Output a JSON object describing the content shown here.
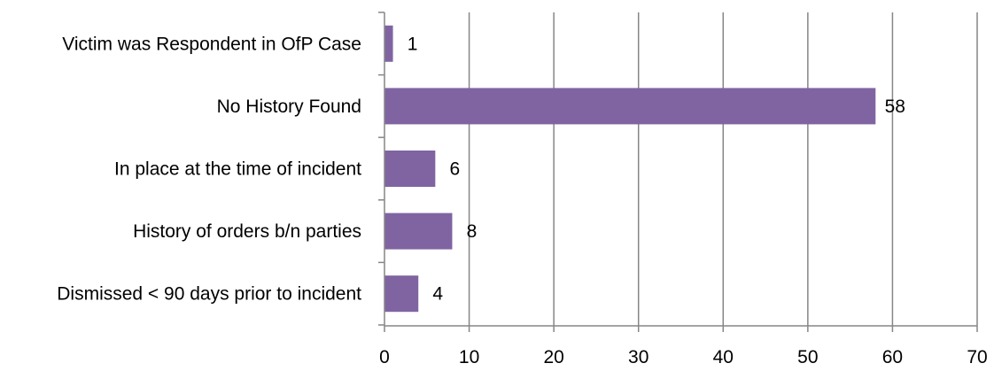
{
  "chart_data": {
    "type": "bar",
    "orientation": "horizontal",
    "categories": [
      "Victim was Respondent in OfP Case",
      "No History Found",
      "In place at the time of incident",
      "History of orders b/n parties",
      "Dismissed < 90 days prior to incident"
    ],
    "values": [
      1,
      58,
      6,
      8,
      4
    ],
    "data_labels": [
      "1",
      "58",
      "6",
      "8",
      "4"
    ],
    "xlim": [
      0,
      70
    ],
    "x_ticks": [
      0,
      10,
      20,
      30,
      40,
      50,
      60,
      70
    ],
    "x_tick_labels": [
      "0",
      "10",
      "20",
      "30",
      "40",
      "50",
      "60",
      "70"
    ],
    "title": "",
    "xlabel": "",
    "ylabel": "",
    "grid": "vertical",
    "legend": "none",
    "colors": {
      "bar": "#8064a2",
      "grid": "#868686",
      "axis": "#868686",
      "text": "#000000"
    }
  }
}
